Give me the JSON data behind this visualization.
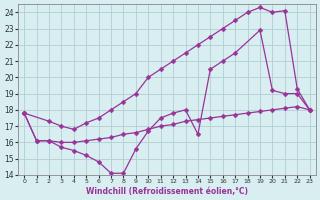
{
  "xlabel": "Windchill (Refroidissement éolien,°C)",
  "bg_color": "#d8eef0",
  "grid_color": "#b0d0d4",
  "line_color": "#993399",
  "xlim": [
    -0.5,
    23.5
  ],
  "ylim": [
    14,
    24.5
  ],
  "yticks": [
    14,
    15,
    16,
    17,
    18,
    19,
    20,
    21,
    22,
    23,
    24
  ],
  "xticks": [
    0,
    1,
    2,
    3,
    4,
    5,
    6,
    7,
    8,
    9,
    10,
    11,
    12,
    13,
    14,
    15,
    16,
    17,
    18,
    19,
    20,
    21,
    22,
    23
  ],
  "line1_x": [
    0,
    1,
    2,
    3,
    4,
    5,
    6,
    7,
    8,
    9,
    10,
    11,
    12,
    13,
    14,
    15,
    16,
    17,
    19,
    20,
    21,
    22,
    23
  ],
  "line1_y": [
    17.8,
    16.1,
    16.1,
    15.7,
    15.5,
    15.2,
    14.8,
    14.1,
    14.1,
    15.6,
    16.7,
    17.5,
    17.8,
    18.0,
    16.5,
    20.5,
    21.0,
    21.5,
    22.9,
    19.2,
    19.0,
    19.0,
    18.0
  ],
  "line2_x": [
    0,
    2,
    3,
    4,
    5,
    6,
    7,
    8,
    9,
    10,
    11,
    12,
    13,
    14,
    15,
    16,
    17,
    18,
    19,
    20,
    21,
    22,
    23
  ],
  "line2_y": [
    17.8,
    17.3,
    17.0,
    16.8,
    17.2,
    17.5,
    18.0,
    18.5,
    19.0,
    20.0,
    20.5,
    21.0,
    21.5,
    22.0,
    22.5,
    23.0,
    23.5,
    24.0,
    24.3,
    24.0,
    24.1,
    19.3,
    18.0
  ],
  "line3_x": [
    0,
    1,
    2,
    3,
    4,
    5,
    6,
    7,
    8,
    9,
    10,
    11,
    12,
    13,
    14,
    15,
    16,
    17,
    18,
    19,
    20,
    21,
    22,
    23
  ],
  "line3_y": [
    17.8,
    16.1,
    16.1,
    16.0,
    16.0,
    16.1,
    16.2,
    16.3,
    16.5,
    16.6,
    16.8,
    17.0,
    17.1,
    17.3,
    17.4,
    17.5,
    17.6,
    17.7,
    17.8,
    17.9,
    18.0,
    18.1,
    18.2,
    18.0
  ]
}
